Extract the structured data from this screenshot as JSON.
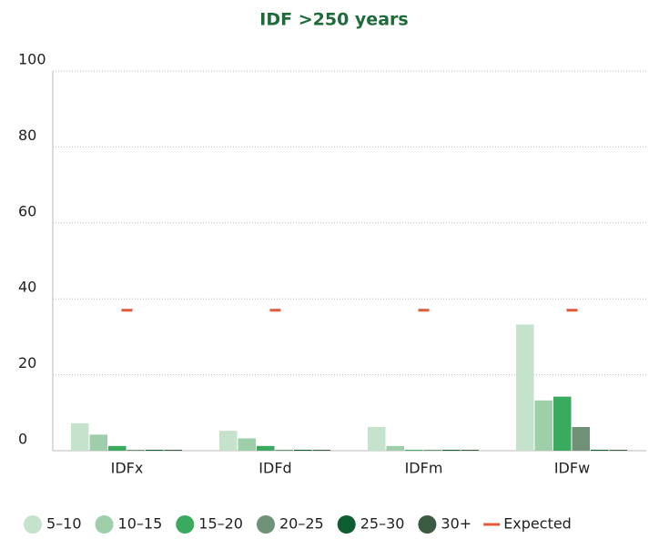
{
  "chart_data": {
    "type": "bar",
    "title": "IDF >250 years",
    "categories": [
      "IDFx",
      "IDFd",
      "IDFm",
      "IDFw"
    ],
    "series": [
      {
        "name": "5–10",
        "color": "#c5e3cc",
        "values": [
          7,
          5,
          6,
          33
        ]
      },
      {
        "name": "10–15",
        "color": "#9fcfaa",
        "values": [
          4,
          3,
          1,
          13
        ]
      },
      {
        "name": "15–20",
        "color": "#3aaa5e",
        "values": [
          1,
          1,
          0,
          14
        ]
      },
      {
        "name": "20–25",
        "color": "#6f9277",
        "values": [
          0,
          0,
          0,
          6
        ]
      },
      {
        "name": "25–30",
        "color": "#0f5e32",
        "values": [
          0,
          0,
          0,
          0
        ]
      },
      {
        "name": "30+",
        "color": "#3b5a42",
        "values": [
          0,
          0,
          0,
          0
        ]
      }
    ],
    "expected": {
      "name": "Expected",
      "color": "#e05a3c",
      "values": [
        37,
        37,
        37,
        37
      ]
    },
    "ylim": [
      0,
      100
    ],
    "yticks": [
      0,
      20,
      40,
      60,
      80,
      100
    ],
    "grid": true
  }
}
